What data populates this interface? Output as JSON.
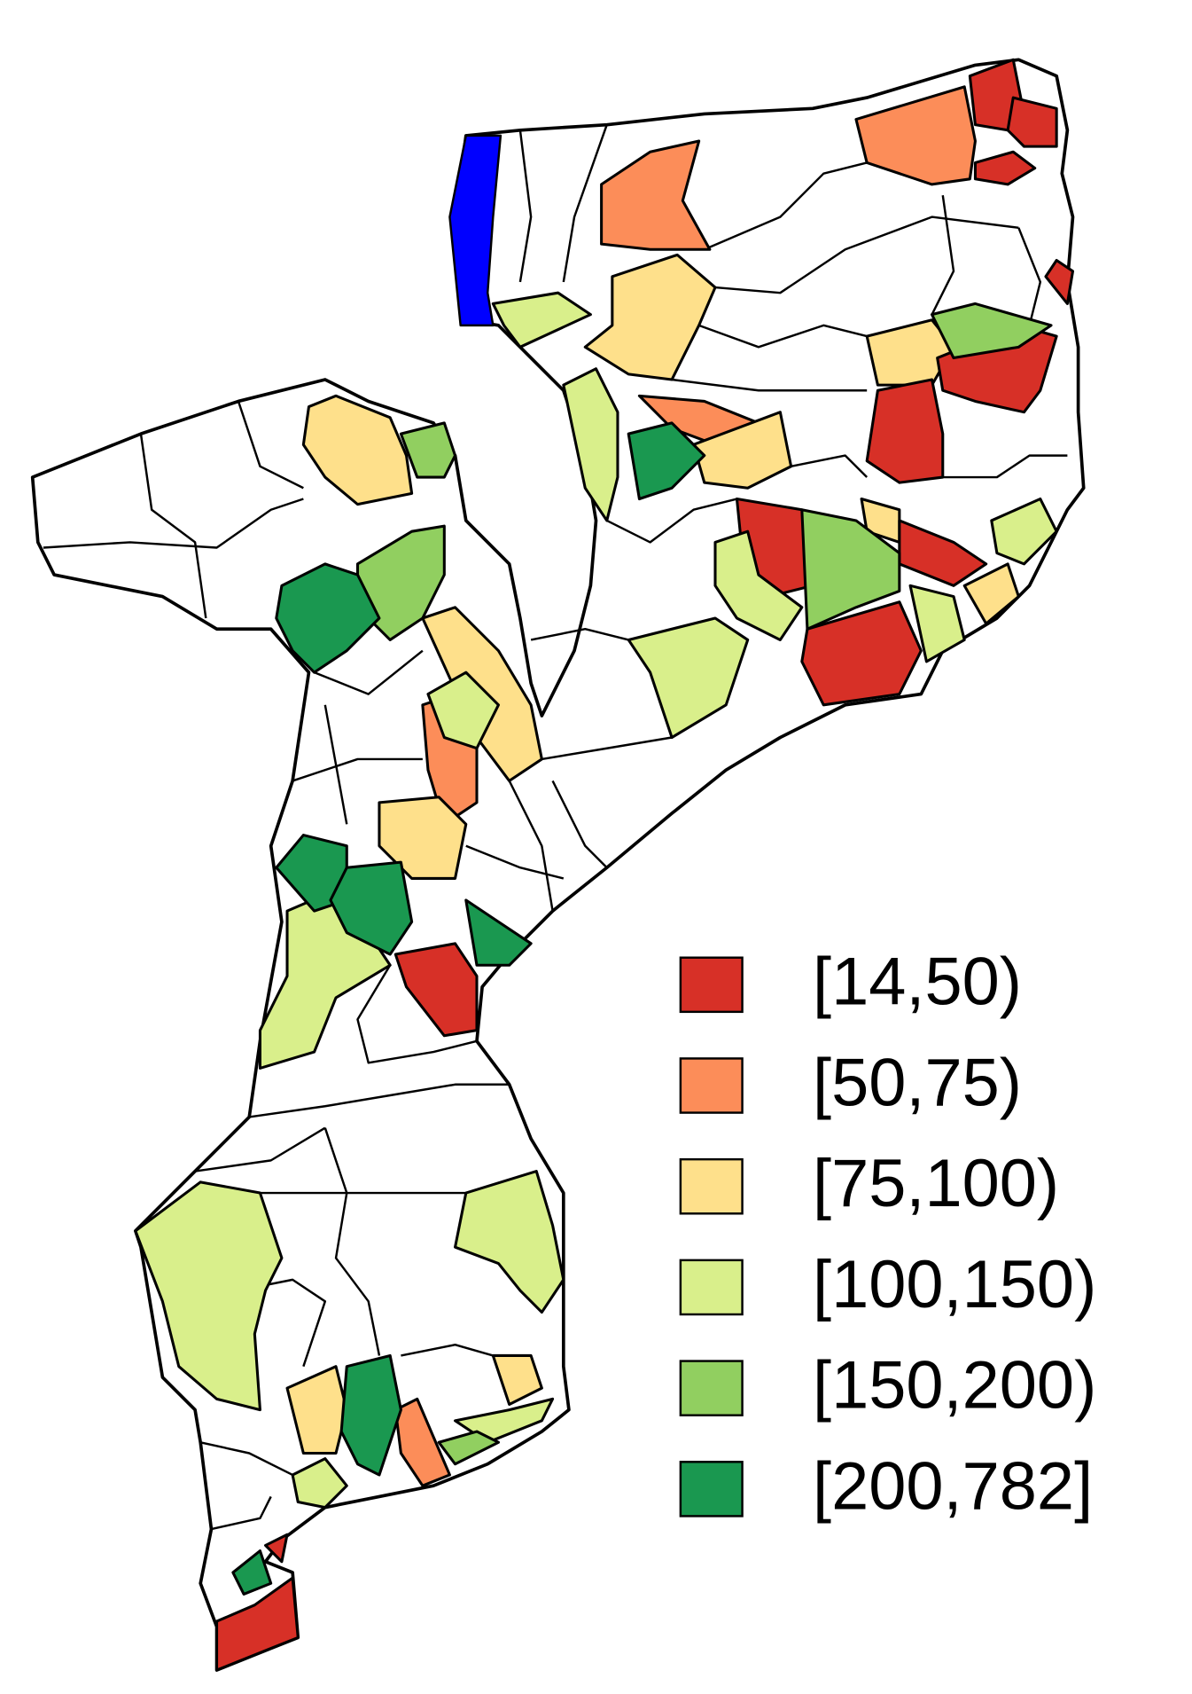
{
  "legend": {
    "items": [
      {
        "label": "[14,50)",
        "color": "#d73027"
      },
      {
        "label": "[50,75)",
        "color": "#fc8d59"
      },
      {
        "label": "[75,100)",
        "color": "#fee08b"
      },
      {
        "label": "[100,150)",
        "color": "#d9ef8b"
      },
      {
        "label": "[150,200)",
        "color": "#91cf60"
      },
      {
        "label": "[200,782]",
        "color": "#1a9850"
      }
    ]
  }
}
